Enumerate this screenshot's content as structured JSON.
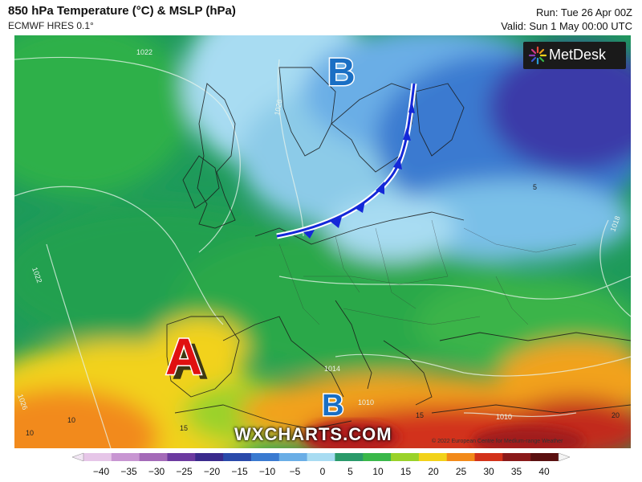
{
  "header": {
    "title": "850 hPa Temperature (°C) & MSLP (hPa)",
    "model": "ECMWF HRES 0.1°",
    "run": "Run: Tue 26 Apr 00Z",
    "valid": "Valid: Sun 1 May 00:00 UTC"
  },
  "brand": {
    "logo_text": "MetDesk",
    "watermark": "WXCHARTS.COM",
    "copyright": "© 2022 European Centre for Medium-range Weather"
  },
  "pressure_centers": [
    {
      "letter": "B",
      "color": "#1a6fc4",
      "meaning": "low pressure (north)"
    },
    {
      "letter": "A",
      "color": "#e01010",
      "meaning": "high pressure"
    },
    {
      "letter": "B",
      "color": "#1a6fc4",
      "meaning": "low pressure (south)"
    }
  ],
  "front": {
    "type": "cold-front",
    "color": "#1428d8"
  },
  "isobar_labels": [
    "1022",
    "1026",
    "1022",
    "1026",
    "1018",
    "1014",
    "1010",
    "1010"
  ],
  "temp_labels": [
    "10",
    "10",
    "15",
    "15",
    "5",
    "20"
  ],
  "colorbar": {
    "ticks": [
      "−40",
      "−35",
      "−30",
      "−25",
      "−20",
      "−15",
      "−10",
      "−5",
      "0",
      "5",
      "10",
      "15",
      "20",
      "25",
      "30",
      "35",
      "40"
    ],
    "colors": [
      "#e6c6e8",
      "#c896d2",
      "#a46ab8",
      "#6c3aa0",
      "#3a2a8c",
      "#2a4aaa",
      "#3a7ad0",
      "#6aaee6",
      "#a8dcf2",
      "#2a9a6a",
      "#3ab84a",
      "#9ad22a",
      "#f2d21a",
      "#f28a1a",
      "#d2321a",
      "#8a1a1a",
      "#5a1010"
    ]
  }
}
